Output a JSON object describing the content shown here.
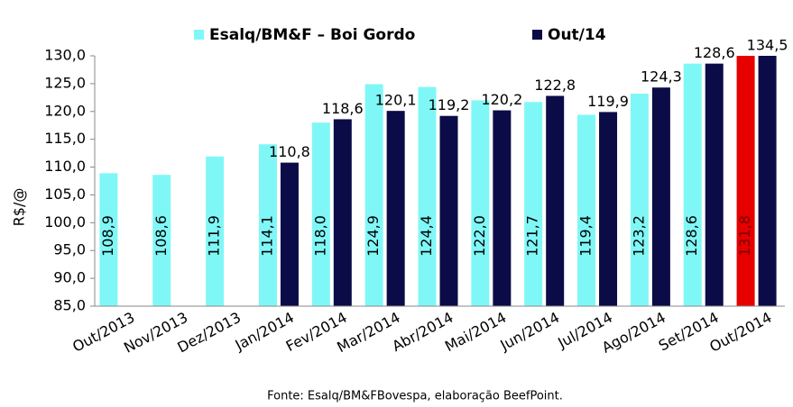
{
  "chart_data": {
    "type": "bar",
    "y_label": "R$/@",
    "source": "Fonte: Esalq/BM&FBovespa, elaboração BeefPoint.",
    "categories": [
      "Out/2013",
      "Nov/2013",
      "Dez/2013",
      "Jan/2014",
      "Fev/2014",
      "Mar/2014",
      "Abr/2014",
      "Mai/2014",
      "Jun/2014",
      "Jul/2014",
      "Ago/2014",
      "Set/2014",
      "Out/2014"
    ],
    "series": [
      {
        "name": "Esalq/BM&F – Boi Gordo",
        "color": "#80f7f7",
        "colors": [
          "#80f7f7",
          "#80f7f7",
          "#80f7f7",
          "#80f7f7",
          "#80f7f7",
          "#80f7f7",
          "#80f7f7",
          "#80f7f7",
          "#80f7f7",
          "#80f7f7",
          "#80f7f7",
          "#80f7f7",
          "#e60000"
        ],
        "values": [
          108.9,
          108.6,
          111.9,
          114.1,
          118.0,
          124.9,
          124.4,
          122.0,
          121.7,
          119.4,
          123.2,
          128.6,
          131.8
        ],
        "value_labels": [
          "108,9",
          "108,6",
          "111,9",
          "114,1",
          "118,0",
          "124,9",
          "124,4",
          "122,0",
          "121,7",
          "119,4",
          "123,2",
          "128,6",
          "131,8"
        ]
      },
      {
        "name": "Out/14",
        "color": "#0b0b48",
        "values": [
          null,
          null,
          null,
          110.8,
          118.6,
          120.1,
          119.2,
          120.2,
          122.8,
          119.9,
          124.3,
          128.6,
          134.5
        ],
        "value_labels": [
          null,
          null,
          null,
          "110,8",
          "118,6",
          "120,1",
          "119,2",
          "120,2",
          "122,8",
          "119,9",
          "124,3",
          "128,6",
          "134,5"
        ]
      }
    ],
    "ylim": [
      85,
      130
    ],
    "yticks": [
      {
        "value": 85,
        "label": "85,0"
      },
      {
        "value": 90,
        "label": "90,0"
      },
      {
        "value": 95,
        "label": "95,0"
      },
      {
        "value": 100,
        "label": "100,0"
      },
      {
        "value": 105,
        "label": "105,0"
      },
      {
        "value": 110,
        "label": "110,0"
      },
      {
        "value": 115,
        "label": "115,0"
      },
      {
        "value": 120,
        "label": "120,0"
      },
      {
        "value": 125,
        "label": "125,0"
      },
      {
        "value": 130,
        "label": "130,0"
      }
    ],
    "grid": false
  }
}
